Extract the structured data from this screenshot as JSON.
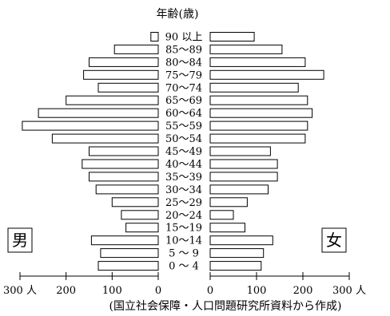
{
  "chart_data": {
    "type": "bar",
    "title": "年齢(歳)",
    "source": "(国立社会保障・人口問題研究所資料から作成)",
    "categories": [
      "90 以上",
      "85～89",
      "80～84",
      "75～79",
      "70～74",
      "65～69",
      "60～64",
      "55～59",
      "50～54",
      "45～49",
      "40～44",
      "35～39",
      "30～34",
      "25～29",
      "20～24",
      "15～19",
      "10～14",
      "5 ～ 9",
      "0 ～ 4"
    ],
    "series": [
      {
        "name": "男",
        "values": [
          16,
          95,
          150,
          162,
          130,
          200,
          260,
          295,
          230,
          150,
          165,
          150,
          135,
          100,
          80,
          70,
          145,
          125,
          130
        ]
      },
      {
        "name": "女",
        "values": [
          95,
          155,
          205,
          245,
          190,
          210,
          220,
          210,
          205,
          130,
          145,
          145,
          125,
          80,
          50,
          75,
          135,
          115,
          110
        ]
      }
    ],
    "xlim": [
      0,
      300
    ],
    "ticks_left": [
      "300 人",
      "200",
      "100",
      "0"
    ],
    "ticks_right": [
      "0",
      "100",
      "200",
      "300 人"
    ],
    "grid": false
  }
}
